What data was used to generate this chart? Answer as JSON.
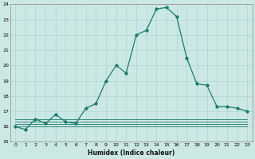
{
  "xlabel": "Humidex (Indice chaleur)",
  "x_values": [
    0,
    1,
    2,
    3,
    4,
    5,
    6,
    7,
    8,
    9,
    10,
    11,
    12,
    13,
    14,
    15,
    16,
    17,
    18,
    19,
    20,
    21,
    22,
    23
  ],
  "main_series": [
    16.0,
    15.8,
    16.5,
    16.2,
    16.8,
    16.3,
    16.2,
    17.2,
    17.5,
    19.0,
    20.0,
    19.5,
    22.0,
    22.3,
    23.7,
    23.8,
    23.2,
    20.5,
    18.8,
    18.7,
    17.3,
    17.3,
    17.2,
    17.0
  ],
  "flat_series": [
    [
      16.5,
      16.5,
      16.5,
      16.5,
      16.5,
      16.5,
      16.5,
      16.5,
      16.5,
      16.5,
      16.5,
      16.5,
      16.5,
      16.5,
      16.5,
      16.5,
      16.5,
      16.5,
      16.5,
      16.5,
      16.5,
      16.5,
      16.5,
      16.5
    ],
    [
      16.3,
      16.3,
      16.3,
      16.3,
      16.3,
      16.3,
      16.3,
      16.3,
      16.3,
      16.3,
      16.3,
      16.3,
      16.3,
      16.3,
      16.3,
      16.3,
      16.3,
      16.3,
      16.3,
      16.3,
      16.3,
      16.3,
      16.3,
      16.3
    ],
    [
      16.15,
      16.15,
      16.15,
      16.15,
      16.15,
      16.15,
      16.15,
      16.15,
      16.15,
      16.15,
      16.15,
      16.15,
      16.15,
      16.15,
      16.15,
      16.15,
      16.15,
      16.15,
      16.15,
      16.15,
      16.15,
      16.15,
      16.15,
      16.15
    ],
    [
      16.0,
      16.0,
      16.0,
      16.0,
      16.0,
      16.0,
      16.0,
      16.0,
      16.0,
      16.0,
      16.0,
      16.0,
      16.0,
      16.0,
      16.0,
      16.0,
      16.0,
      16.0,
      16.0,
      16.0,
      16.0,
      16.0,
      16.0,
      16.0
    ]
  ],
  "line_color": "#1a7a6e",
  "bg_color": "#cce8e4",
  "grid_color": "#aed4cf",
  "ylim": [
    15,
    24
  ],
  "yticks": [
    15,
    16,
    17,
    18,
    19,
    20,
    21,
    22,
    23,
    24
  ],
  "xticks": [
    0,
    1,
    2,
    3,
    4,
    5,
    6,
    7,
    8,
    9,
    10,
    11,
    12,
    13,
    14,
    15,
    16,
    17,
    18,
    19,
    20,
    21,
    22,
    23
  ],
  "tick_fontsize": 4.5,
  "xlabel_fontsize": 5.5
}
